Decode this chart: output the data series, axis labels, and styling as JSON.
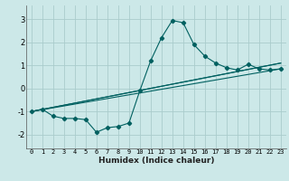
{
  "title": "",
  "xlabel": "Humidex (Indice chaleur)",
  "ylabel": "",
  "background_color": "#cce8e8",
  "grid_color": "#aacccc",
  "line_color": "#006060",
  "xlim": [
    -0.5,
    23.5
  ],
  "ylim": [
    -2.6,
    3.6
  ],
  "xticks": [
    0,
    1,
    2,
    3,
    4,
    5,
    6,
    7,
    8,
    9,
    10,
    11,
    12,
    13,
    14,
    15,
    16,
    17,
    18,
    19,
    20,
    21,
    22,
    23
  ],
  "yticks": [
    -2,
    -1,
    0,
    1,
    2,
    3
  ],
  "main_line": {
    "x": [
      0,
      1,
      2,
      3,
      4,
      5,
      6,
      7,
      8,
      9,
      10,
      11,
      12,
      13,
      14,
      15,
      16,
      17,
      18,
      19,
      20,
      21,
      22,
      23
    ],
    "y": [
      -1.0,
      -0.9,
      -1.2,
      -1.3,
      -1.3,
      -1.35,
      -1.9,
      -1.7,
      -1.65,
      -1.5,
      -0.1,
      1.2,
      2.2,
      2.95,
      2.85,
      1.9,
      1.4,
      1.1,
      0.9,
      0.8,
      1.05,
      0.85,
      0.8,
      0.85
    ]
  },
  "ref_lines": [
    {
      "x": [
        0,
        23
      ],
      "y": [
        -1.0,
        0.85
      ]
    },
    {
      "x": [
        0,
        23
      ],
      "y": [
        -1.0,
        1.1
      ]
    },
    {
      "x": [
        0,
        23
      ],
      "y": [
        -1.0,
        1.1
      ]
    }
  ]
}
